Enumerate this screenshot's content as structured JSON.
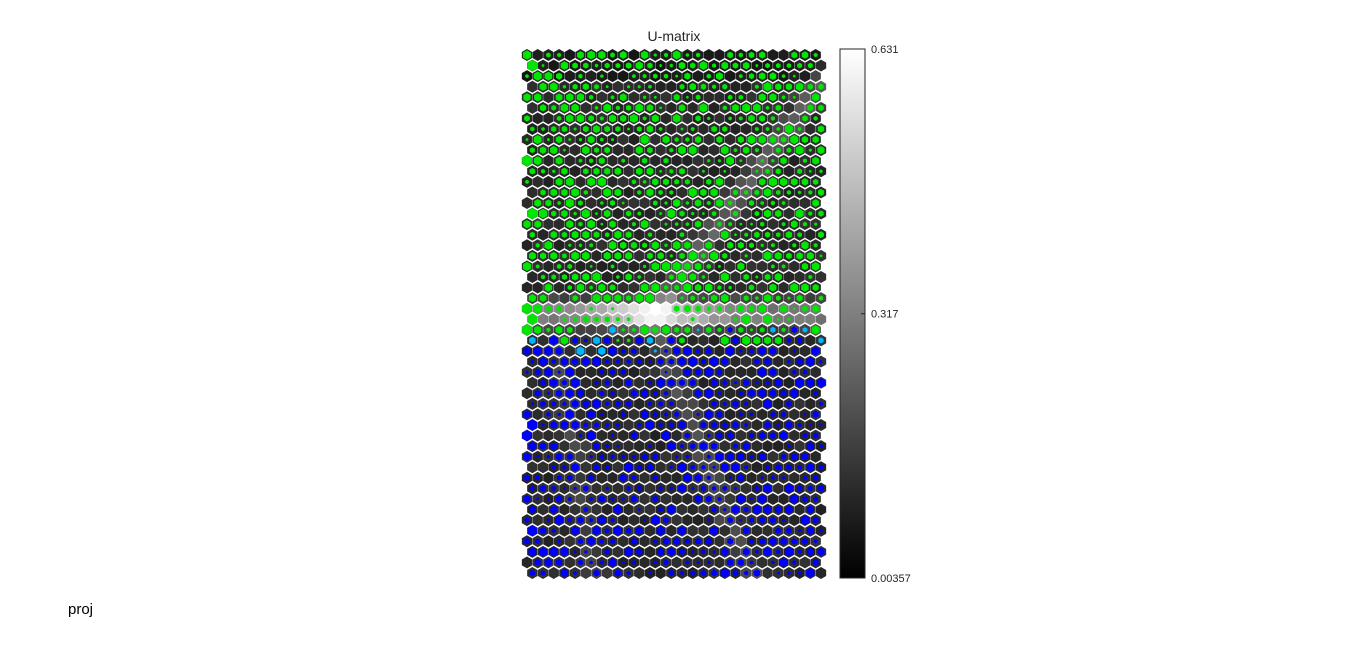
{
  "chart_data": {
    "type": "heatmap",
    "title": "U-matrix",
    "grid": {
      "rows": 50,
      "cols": 28,
      "lattice": "hexagonal"
    },
    "colormap": "gray",
    "colorbar": {
      "min": 0.00357,
      "max": 0.631,
      "ticks": [
        0.00357,
        0.317,
        0.631
      ],
      "tick_labels": [
        "0.00357",
        "0.317",
        "0.631"
      ],
      "placement": "right"
    },
    "overlay": {
      "kind": "hit-markers",
      "classes": [
        {
          "color": "#00e600",
          "region": "upper",
          "row_end_fraction": 0.55
        },
        {
          "color": "#0000ff",
          "region": "lower",
          "row_start_fraction": 0.55
        }
      ],
      "accent_color": "#00b4ff"
    },
    "features": [
      {
        "kind": "high-distance-band",
        "description": "bright horizontal ridge",
        "row_fraction": 0.5
      }
    ]
  },
  "footer": {
    "label": "proj"
  },
  "colors": {
    "background": "#ffffff",
    "text": "#262626",
    "green_class": "#00e600",
    "blue_class": "#0000ff"
  }
}
